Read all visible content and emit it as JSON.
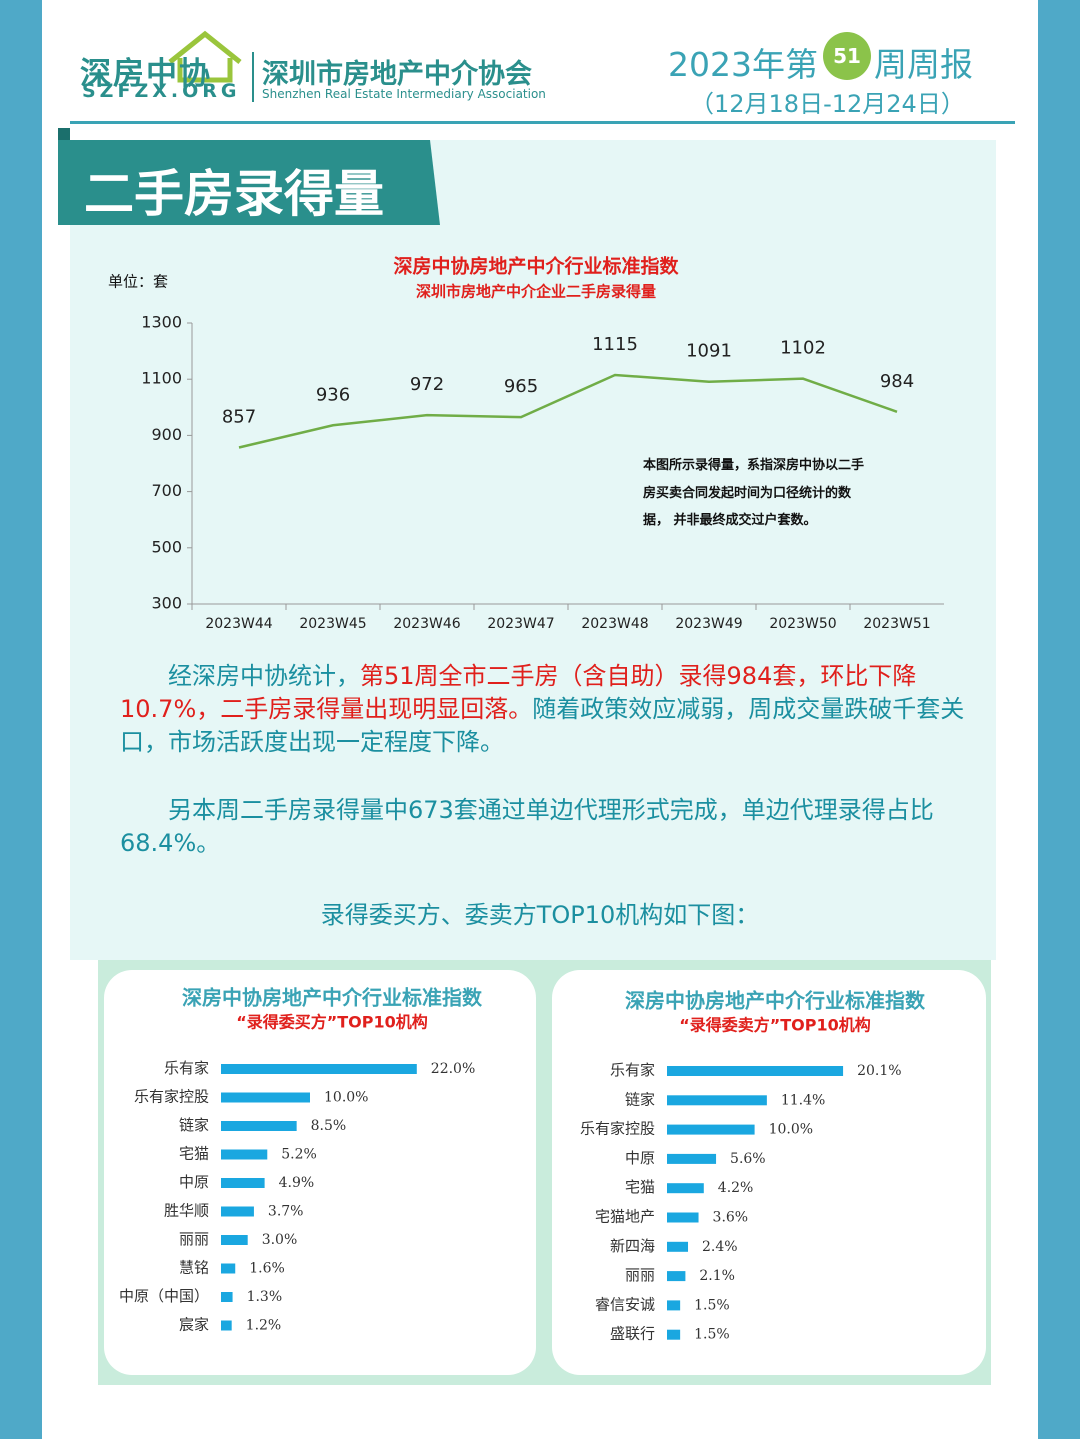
{
  "header": {
    "logo_cn": "深房中协",
    "logo_en": "SZFZX.ORG",
    "org_cn": "深圳市房地产中介协会",
    "org_en": "Shenzhen Real Estate Intermediary Association",
    "report_prefix": "2023年第",
    "week": "51",
    "report_suffix": "周周报",
    "date_range": "（12月18日-12月24日）"
  },
  "section_title": "二手房录得量",
  "chart_data": [
    {
      "type": "line",
      "title": "深房中协房地产中介行业标准指数",
      "subtitle": "深圳市房地产中介企业二手房录得量",
      "unit_label": "单位：套",
      "categories": [
        "2023W44",
        "2023W45",
        "2023W46",
        "2023W47",
        "2023W48",
        "2023W49",
        "2023W50",
        "2023W51"
      ],
      "values": [
        857,
        936,
        972,
        965,
        1115,
        1091,
        1102,
        984
      ],
      "color": "#70ad47",
      "ylim": [
        300,
        1300
      ],
      "yticks": [
        300,
        500,
        700,
        900,
        1100,
        1300
      ],
      "annotation": "本图所示录得量，系指深房中协以二手房买卖合同发起时间为口径统计的数据， 并非最终成交过户套数。"
    },
    {
      "type": "bar",
      "orientation": "horizontal",
      "title": "深房中协房地产中介行业标准指数",
      "subtitle": "“录得委买方”TOP10机构",
      "categories": [
        "乐有家",
        "乐有家控股",
        "链家",
        "宅猫",
        "中原",
        "胜华顺",
        "丽丽",
        "慧铭",
        "中原（中国）",
        "宸家"
      ],
      "values": [
        22.0,
        10.0,
        8.5,
        5.2,
        4.9,
        3.7,
        3.0,
        1.6,
        1.3,
        1.2
      ],
      "value_labels": [
        "22.0%",
        "10.0%",
        "8.5%",
        "5.2%",
        "4.9%",
        "3.7%",
        "3.0%",
        "1.6%",
        "1.3%",
        "1.2%"
      ],
      "color": "#1aa7e0"
    },
    {
      "type": "bar",
      "orientation": "horizontal",
      "title": "深房中协房地产中介行业标准指数",
      "subtitle": "“录得委卖方”TOP10机构",
      "categories": [
        "乐有家",
        "链家",
        "乐有家控股",
        "中原",
        "宅猫",
        "宅猫地产",
        "新四海",
        "丽丽",
        "睿信安诚",
        "盛联行"
      ],
      "values": [
        20.1,
        11.4,
        10.0,
        5.6,
        4.2,
        3.6,
        2.4,
        2.1,
        1.5,
        1.5
      ],
      "value_labels": [
        "20.1%",
        "11.4%",
        "10.0%",
        "5.6%",
        "4.2%",
        "3.6%",
        "2.4%",
        "2.1%",
        "1.5%",
        "1.5%"
      ],
      "color": "#1aa7e0"
    }
  ],
  "paragraphs": [
    [
      {
        "text": "经深房中协统计，",
        "color": "#1b8fa0"
      },
      {
        "text": "第51周全市二手房（含自助）录得984套，环比下降10.7%，二手房录得量出现明显回落。",
        "color": "#e0201c"
      },
      {
        "text": "随着政策效应减弱，周成交量跌破千套关口，市场活跃度出现一定程度下降。",
        "color": "#1b8fa0"
      }
    ],
    [
      {
        "text": "另本周二手房录得量中673套通过单边代理形式完成，单边代理录得占比68.4%。",
        "color": "#1b8fa0"
      }
    ]
  ],
  "intro": "录得委买方、委卖方TOP10机构如下图："
}
